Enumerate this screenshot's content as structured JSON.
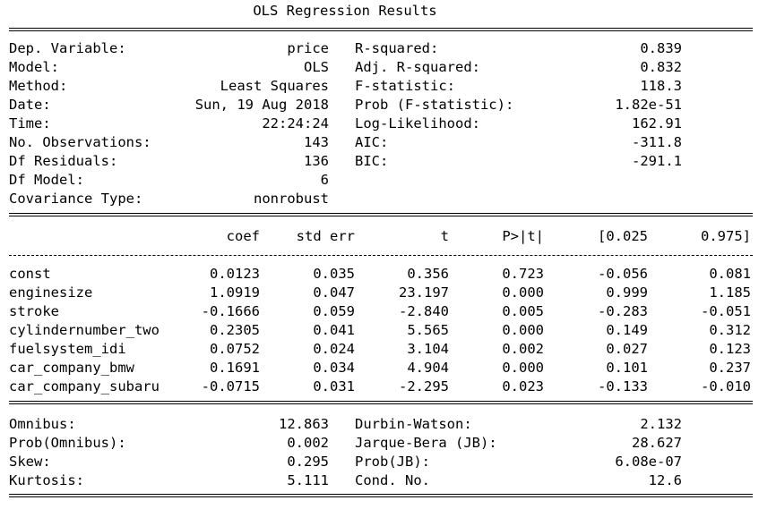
{
  "title": "OLS Regression Results",
  "summary": [
    {
      "label_left": "Dep. Variable:",
      "value_left": "price",
      "label_right": "R-squared:",
      "value_right": "0.839"
    },
    {
      "label_left": "Model:",
      "value_left": "OLS",
      "label_right": "Adj. R-squared:",
      "value_right": "0.832"
    },
    {
      "label_left": "Method:",
      "value_left": "Least Squares",
      "label_right": "F-statistic:",
      "value_right": "118.3"
    },
    {
      "label_left": "Date:",
      "value_left": "Sun, 19 Aug 2018",
      "label_right": "Prob (F-statistic):",
      "value_right": "1.82e-51"
    },
    {
      "label_left": "Time:",
      "value_left": "22:24:24",
      "label_right": "Log-Likelihood:",
      "value_right": "162.91"
    },
    {
      "label_left": "No. Observations:",
      "value_left": "143",
      "label_right": "AIC:",
      "value_right": "-311.8"
    },
    {
      "label_left": "Df Residuals:",
      "value_left": "136",
      "label_right": "BIC:",
      "value_right": "-291.1"
    },
    {
      "label_left": "Df Model:",
      "value_left": "6",
      "label_right": "",
      "value_right": ""
    },
    {
      "label_left": "Covariance Type:",
      "value_left": "nonrobust",
      "label_right": "",
      "value_right": ""
    }
  ],
  "coef_table": {
    "headers": [
      "",
      "coef",
      "std err",
      "t",
      "P>|t|",
      "[0.025",
      "0.975]"
    ],
    "rows": [
      [
        "const",
        "0.0123",
        "0.035",
        "0.356",
        "0.723",
        "-0.056",
        "0.081"
      ],
      [
        "enginesize",
        "1.0919",
        "0.047",
        "23.197",
        "0.000",
        "0.999",
        "1.185"
      ],
      [
        "stroke",
        "-0.1666",
        "0.059",
        "-2.840",
        "0.005",
        "-0.283",
        "-0.051"
      ],
      [
        "cylindernumber_two",
        "0.2305",
        "0.041",
        "5.565",
        "0.000",
        "0.149",
        "0.312"
      ],
      [
        "fuelsystem_idi",
        "0.0752",
        "0.024",
        "3.104",
        "0.002",
        "0.027",
        "0.123"
      ],
      [
        "car_company_bmw",
        "0.1691",
        "0.034",
        "4.904",
        "0.000",
        "0.101",
        "0.237"
      ],
      [
        "car_company_subaru",
        "-0.0715",
        "0.031",
        "-2.295",
        "0.023",
        "-0.133",
        "-0.010"
      ]
    ]
  },
  "diagnostics": [
    {
      "label_left": "Omnibus:",
      "value_left": "12.863",
      "label_right": "Durbin-Watson:",
      "value_right": "2.132"
    },
    {
      "label_left": "Prob(Omnibus):",
      "value_left": "0.002",
      "label_right": "Jarque-Bera (JB):",
      "value_right": "28.627"
    },
    {
      "label_left": "Skew:",
      "value_left": "0.295",
      "label_right": "Prob(JB):",
      "value_right": "6.08e-07"
    },
    {
      "label_left": "Kurtosis:",
      "value_left": "5.111",
      "label_right": "Cond. No.",
      "value_right": "12.6"
    }
  ]
}
